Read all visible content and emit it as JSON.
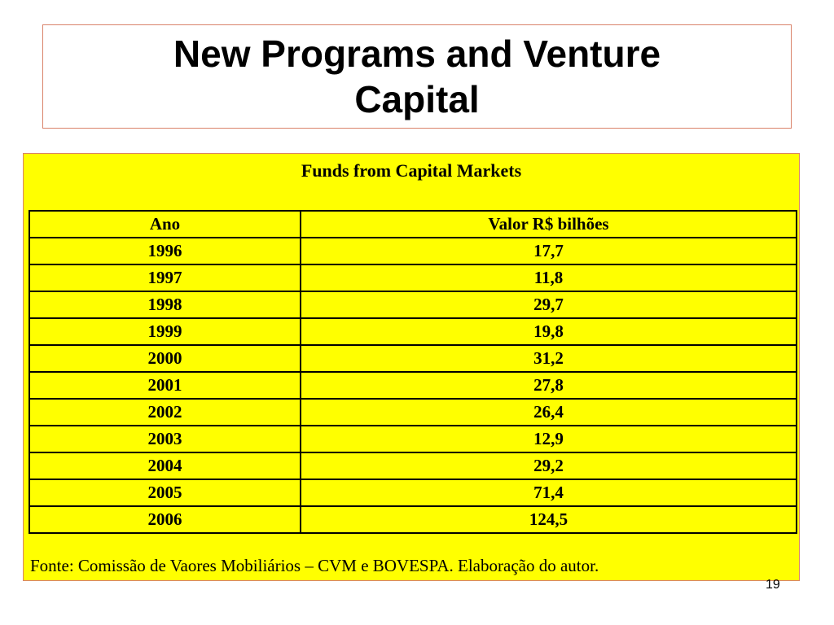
{
  "slide": {
    "title": "New Programs and Venture Capital",
    "page_number": "19"
  },
  "table": {
    "caption": "Funds from Capital Markets",
    "columns": [
      "Ano",
      "Valor R$ bilhões"
    ],
    "rows": [
      [
        "1996",
        "17,7"
      ],
      [
        "1997",
        "11,8"
      ],
      [
        "1998",
        "29,7"
      ],
      [
        "1999",
        "19,8"
      ],
      [
        "2000",
        "31,2"
      ],
      [
        "2001",
        "27,8"
      ],
      [
        "2002",
        "26,4"
      ],
      [
        "2003",
        "12,9"
      ],
      [
        "2004",
        "29,2"
      ],
      [
        "2005",
        "71,4"
      ],
      [
        "2006",
        "124,5"
      ]
    ],
    "source": "Fonte: Comissão de Vaores Mobiliários – CVM e BOVESPA. Elaboração do autor."
  },
  "colors": {
    "panel_background": "#ffff00",
    "frame_border": "#d9826a"
  }
}
